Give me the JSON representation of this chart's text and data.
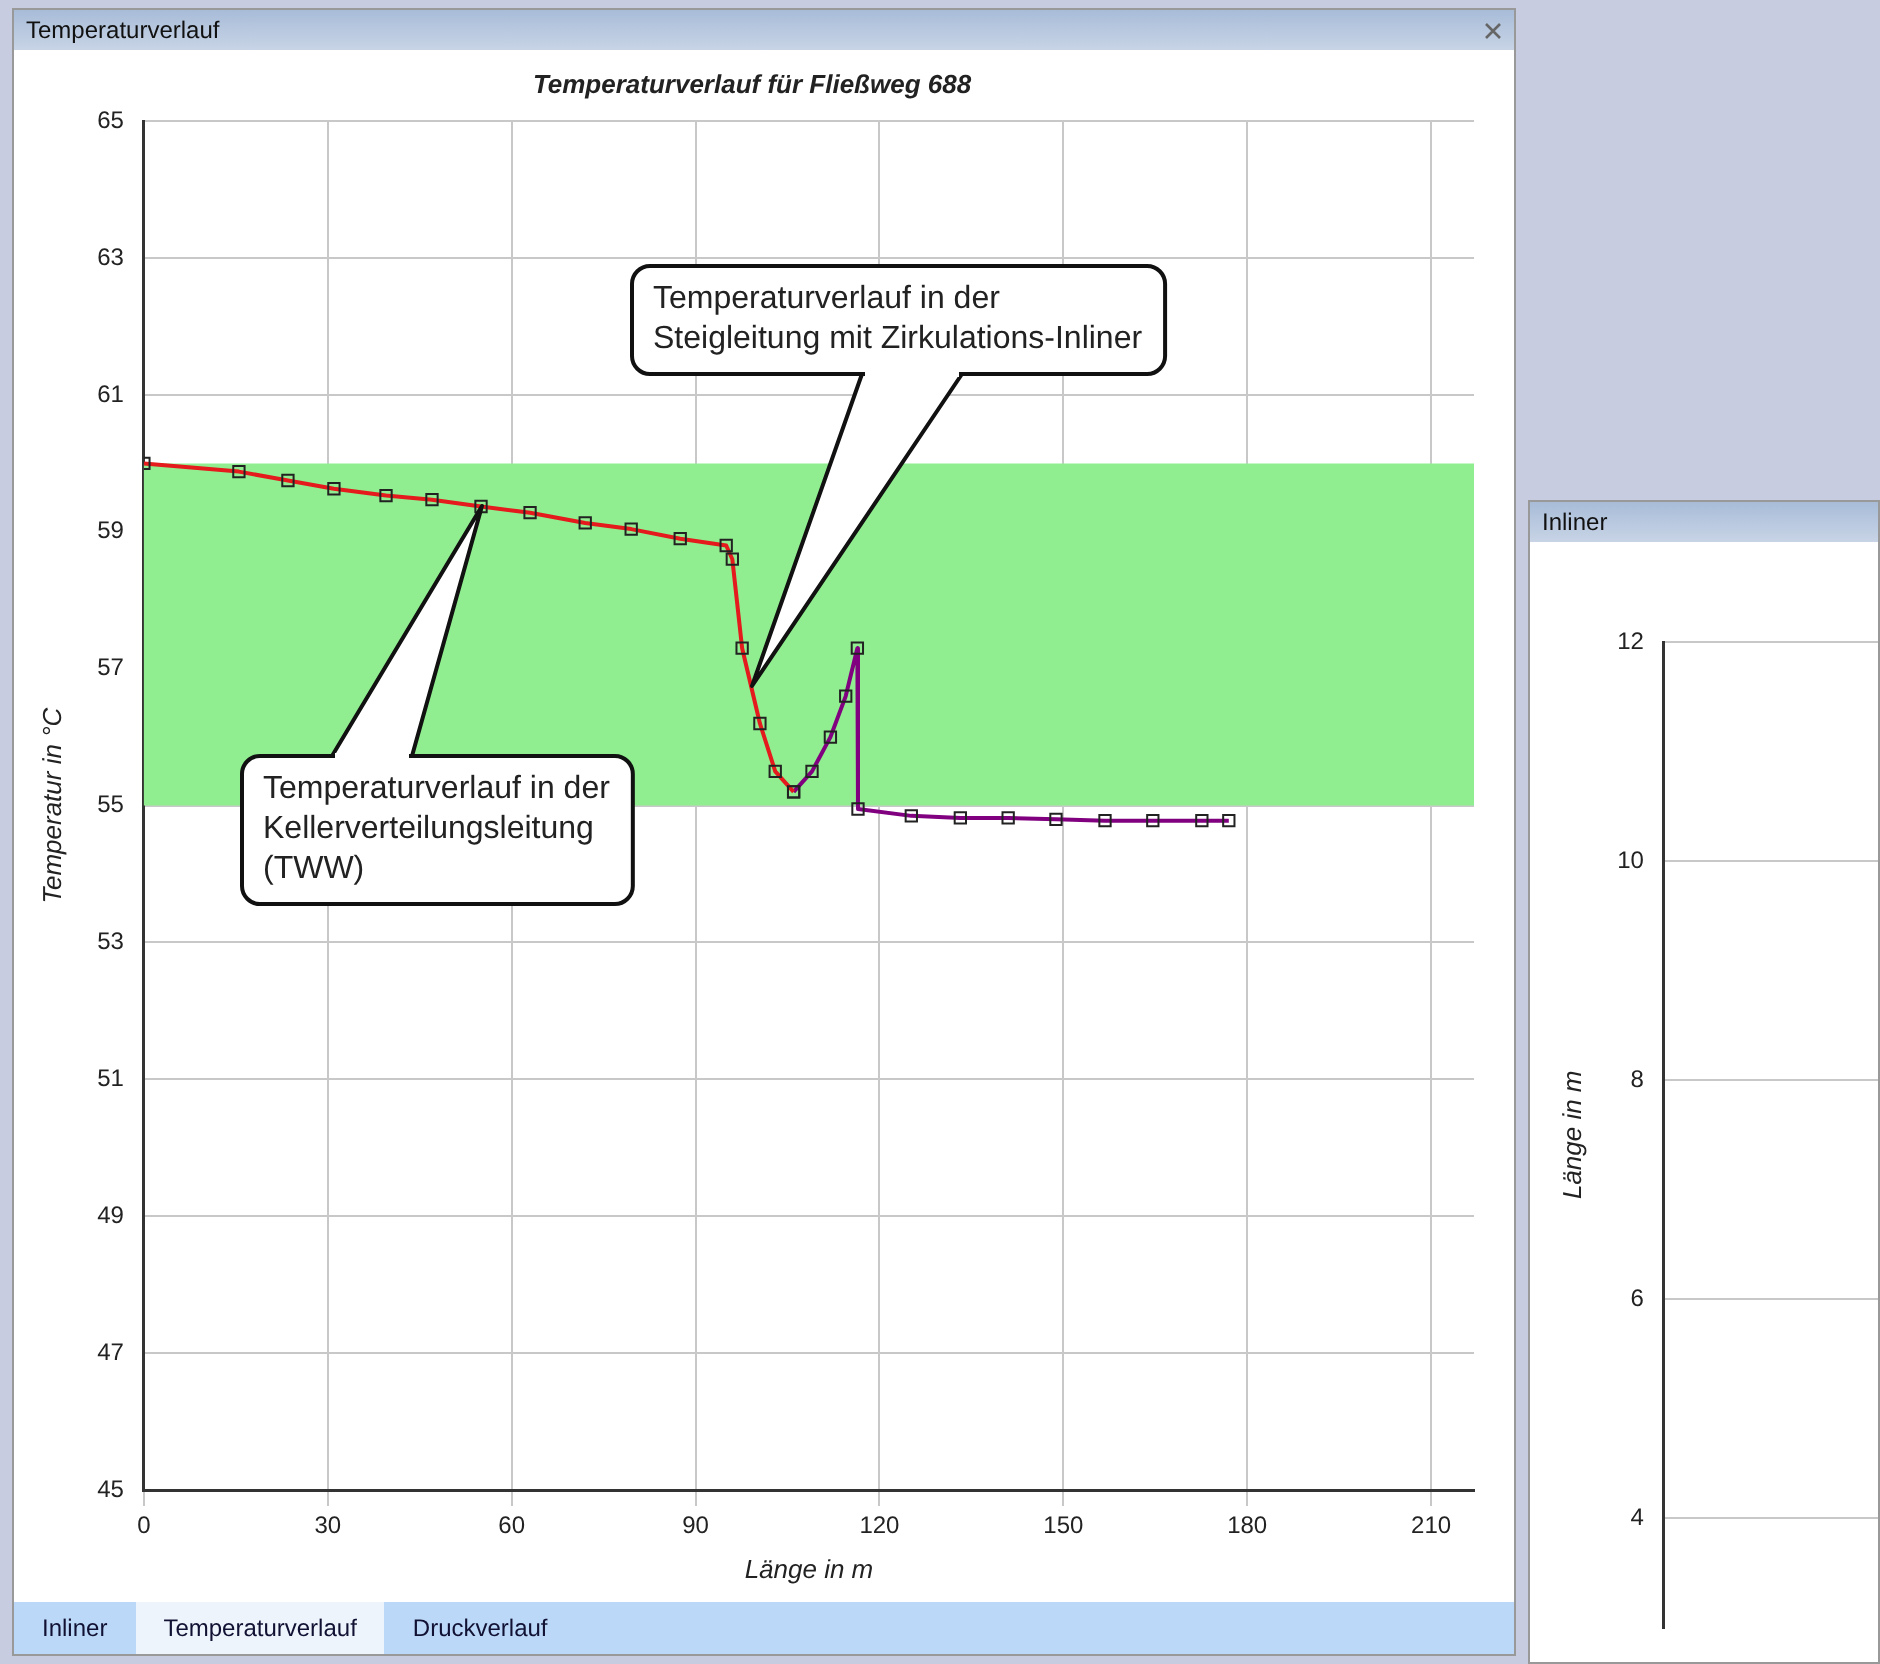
{
  "chart_data": [
    {
      "type": "line",
      "title": "Temperaturverlauf für Fließweg 688",
      "xlabel": "Länge in m",
      "ylabel": "Temperatur in °C",
      "xlim": [
        0,
        217
      ],
      "xticks": [
        0,
        30,
        60,
        90,
        120,
        150,
        180,
        210
      ],
      "ylim": [
        45,
        65
      ],
      "yticks": [
        45,
        47,
        49,
        51,
        53,
        55,
        57,
        59,
        61,
        63,
        65
      ],
      "grid": true,
      "legend": false,
      "marker": "square",
      "series": [
        {
          "color": "#e41a1c",
          "x": [
            0,
            15.5,
            23.5,
            31,
            39.5,
            47,
            55,
            63,
            72,
            79.5,
            87.5,
            95,
            96,
            97.6,
            100.5,
            103,
            106
          ],
          "values": [
            60.0,
            59.88,
            59.75,
            59.63,
            59.53,
            59.47,
            59.37,
            59.28,
            59.13,
            59.04,
            58.9,
            58.8,
            58.6,
            57.3,
            56.2,
            55.5,
            55.2
          ]
        },
        {
          "color": "#800080",
          "x": [
            106,
            109,
            112,
            114.5,
            116.4,
            116.5,
            125.2,
            133.2,
            141,
            148.8,
            156.8,
            164.6,
            172.6,
            177
          ],
          "values": [
            55.2,
            55.5,
            56.0,
            56.6,
            57.3,
            54.95,
            54.85,
            54.82,
            54.82,
            54.8,
            54.78,
            54.78,
            54.78,
            54.78
          ]
        }
      ],
      "bands": [
        {
          "axis": "y",
          "from": 55,
          "to": 60,
          "color": "#90ee90"
        }
      ],
      "annotations": [
        "Temperaturverlauf in der\nKellerverteilungsleitung\n(TWW)",
        "Temperaturverlauf in der\nSteigleitung mit Zirkulations-Inliner",
        "Temperaturverlauf",
        "Inliner",
        "Temperaturverlauf",
        "Druckverlauf"
      ]
    },
    {
      "type": "line",
      "ylabel": "Länge in m",
      "categories": [
        null,
        null,
        null
      ],
      "ylim": [
        3,
        12
      ],
      "yticks": [
        4,
        6,
        8,
        10,
        12
      ],
      "grid": "y",
      "tick_labels": "y",
      "annotations": [
        "Inliner"
      ]
    }
  ]
}
